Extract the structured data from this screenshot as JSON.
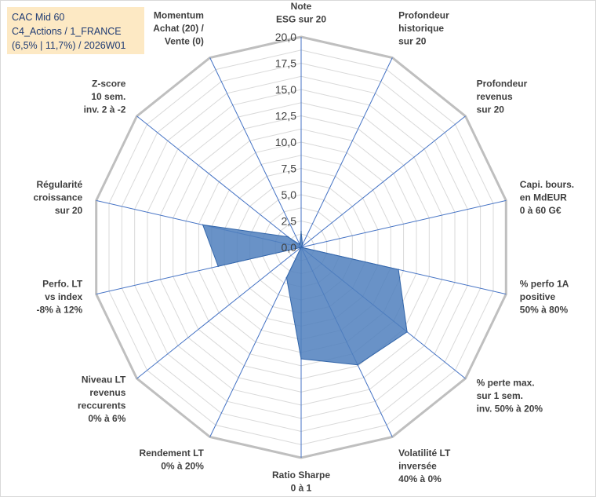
{
  "title_box": {
    "line1": "CAC Mid 60",
    "line2": "C4_Actions / 1_FRANCE",
    "line3": "(6,5% | 11,7%) / 2026W01"
  },
  "colors": {
    "title_bg": "#fde9c4",
    "title_text": "#1f3b73",
    "fill": "#4f7fbd",
    "stroke": "#3366aa",
    "grid": "#d9d9d9",
    "axis": "#4472c4",
    "outer": "#bfbfbf"
  },
  "chart_data": {
    "type": "radar",
    "rmax": 20,
    "tick_values": [
      0,
      2.5,
      5,
      7.5,
      10,
      12.5,
      15,
      17.5,
      20
    ],
    "tick_labels": [
      "0,0",
      "2,5",
      "5,0",
      "7,5",
      "10,0",
      "12,5",
      "15,0",
      "17,5",
      "20,0"
    ],
    "axes": [
      {
        "lines": [
          "Note",
          "ESG sur 20"
        ],
        "value": 1.5
      },
      {
        "lines": [
          "Profondeur",
          "historique",
          "sur 20"
        ],
        "value": 0.3
      },
      {
        "lines": [
          "Profondeur",
          "revenus",
          "sur 20"
        ],
        "value": 0.0
      },
      {
        "lines": [
          "Capi. bours.",
          "en MdEUR",
          "0 à 60 G€"
        ],
        "value": 0.0
      },
      {
        "lines": [
          "% perfo 1A",
          "positive",
          "50% à 80%"
        ],
        "value": 9.5
      },
      {
        "lines": [
          "% perte max.",
          "sur 1 sem.",
          "inv. 50% à 20%"
        ],
        "value": 12.9
      },
      {
        "lines": [
          "Volatilité LT",
          "inversée",
          "40% à 0%"
        ],
        "value": 12.4
      },
      {
        "lines": [
          "Ratio Sharpe",
          "0 à 1"
        ],
        "value": 10.6
      },
      {
        "lines": [
          "Rendement LT",
          "0% à 20%"
        ],
        "value": 3.2
      },
      {
        "lines": [
          "Niveau LT",
          "revenus",
          "reccurents",
          "0% à 6%"
        ],
        "value": 0.0
      },
      {
        "lines": [
          "Perfo. LT",
          "vs index",
          "-8% à 12%"
        ],
        "value": 8.1
      },
      {
        "lines": [
          "Régularité",
          "croissance",
          "sur 20"
        ],
        "value": 9.6
      },
      {
        "lines": [
          "Z-score",
          "10 sem.",
          "inv. 2 à -2"
        ],
        "value": 1.6
      },
      {
        "lines": [
          "Momentum",
          "Achat (20) /",
          "Vente (0)"
        ],
        "value": 0.3
      }
    ]
  }
}
